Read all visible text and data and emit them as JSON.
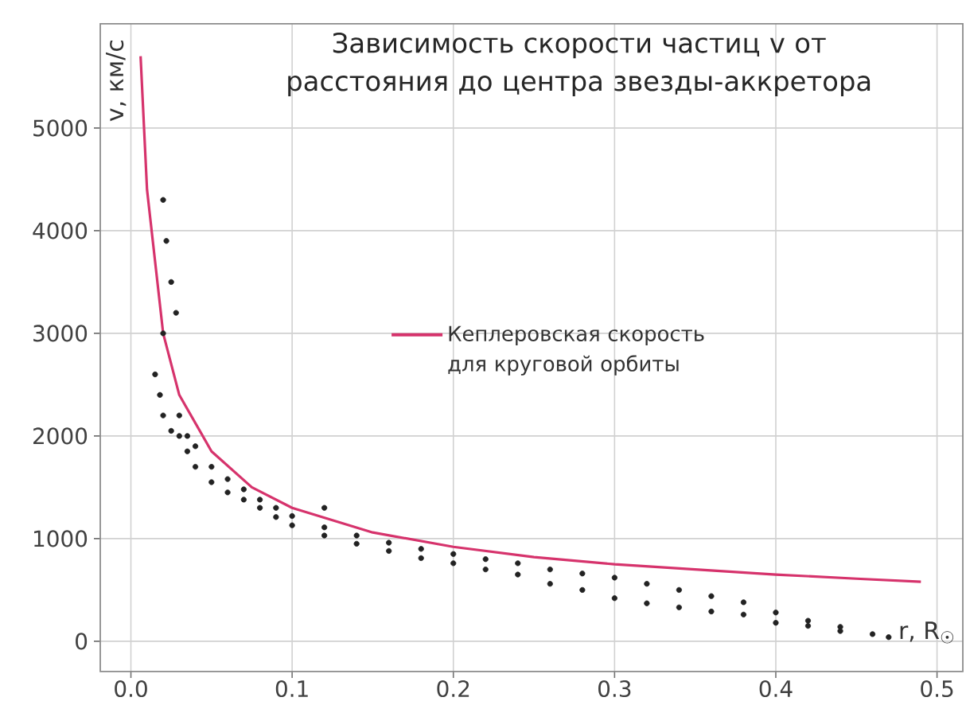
{
  "chart_data": {
    "type": "scatter",
    "title": "Зависимость скорости частиц v от расстояния до центра звезды-аккретора",
    "xlabel": "r, R$_{☉}$",
    "ylabel": "v, км/с",
    "xlim": [
      -0.019,
      0.516
    ],
    "ylim": [
      -295,
      6015
    ],
    "xticks": [
      {
        "value": 0,
        "label": "0.0"
      },
      0.1,
      0.2,
      0.3,
      0.4,
      0.5
    ],
    "yticks": [
      0,
      1000,
      2000,
      3000,
      4000,
      5000
    ],
    "grid": true,
    "legend": "right",
    "series": [
      {
        "color": "#222222",
        "marker": "circle",
        "x": [
          0.015,
          0.018,
          0.02,
          0.02,
          0.02,
          0.022,
          0.025,
          0.025,
          0.028,
          0.03,
          0.03,
          0.035,
          0.035,
          0.04,
          0.04,
          0.05,
          0.05,
          0.06,
          0.06,
          0.07,
          0.07,
          0.08,
          0.08,
          0.09,
          0.09,
          0.1,
          0.1,
          0.12,
          0.12,
          0.12,
          0.14,
          0.14,
          0.16,
          0.16,
          0.18,
          0.18,
          0.2,
          0.2,
          0.22,
          0.22,
          0.24,
          0.24,
          0.26,
          0.26,
          0.28,
          0.28,
          0.3,
          0.3,
          0.32,
          0.32,
          0.34,
          0.34,
          0.36,
          0.36,
          0.38,
          0.38,
          0.4,
          0.4,
          0.42,
          0.42,
          0.44,
          0.44,
          0.46,
          0.47
        ],
        "values": [
          2600,
          2400,
          2200,
          3000,
          4300,
          3900,
          3500,
          2050,
          3200,
          2200,
          2000,
          2000,
          1850,
          1900,
          1700,
          1700,
          1550,
          1580,
          1450,
          1480,
          1380,
          1380,
          1300,
          1300,
          1210,
          1220,
          1130,
          1110,
          1030,
          1300,
          1030,
          950,
          960,
          880,
          900,
          810,
          850,
          760,
          800,
          700,
          760,
          650,
          700,
          560,
          660,
          500,
          620,
          420,
          560,
          370,
          500,
          330,
          440,
          290,
          380,
          260,
          280,
          180,
          200,
          150,
          140,
          100,
          70,
          40
        ]
      },
      {
        "type": "line",
        "name": "Кеплеровская скорость для круговой орбиты",
        "color": "#d6336c",
        "marker": "none",
        "x": [
          0.006,
          0.01,
          0.02,
          0.03,
          0.05,
          0.075,
          0.1,
          0.15,
          0.2,
          0.25,
          0.3,
          0.35,
          0.4,
          0.45,
          0.49
        ],
        "values": [
          5700,
          4400,
          3000,
          2400,
          1850,
          1500,
          1300,
          1060,
          920,
          820,
          750,
          700,
          650,
          610,
          580
        ]
      }
    ]
  }
}
